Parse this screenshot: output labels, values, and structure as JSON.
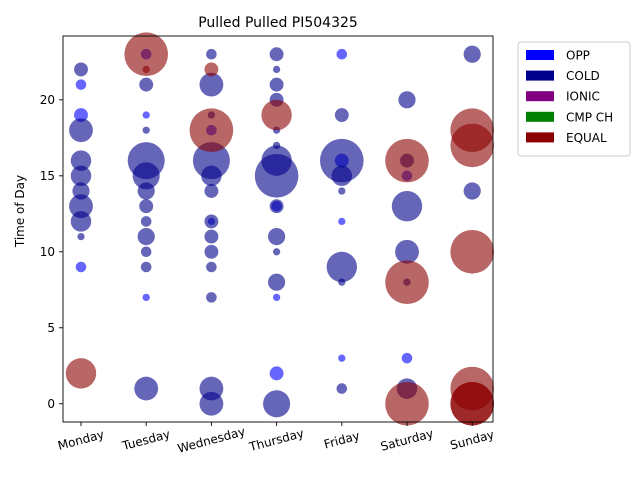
{
  "chart_data": {
    "type": "scatter",
    "title": "Pulled Pulled PI504325",
    "xlabel": "",
    "ylabel": "Time of Day",
    "categories": [
      "Monday",
      "Tuesday",
      "Wednesday",
      "Thursday",
      "Friday",
      "Saturday",
      "Sunday"
    ],
    "ylim": [
      -1.2,
      24.2
    ],
    "yticks": [
      0,
      5,
      10,
      15,
      20
    ],
    "grid": false,
    "legend_position": "outside-top-right",
    "legend": [
      {
        "name": "OPP",
        "color": "#0000ff"
      },
      {
        "name": "COLD",
        "color": "#00008b"
      },
      {
        "name": "IONIC",
        "color": "#800080"
      },
      {
        "name": "CMP CH",
        "color": "#008000"
      },
      {
        "name": "EQUAL",
        "color": "#8b0000"
      }
    ],
    "marker_alpha": 0.6,
    "series": [
      {
        "name": "OPP",
        "color": "#0000ff",
        "points": [
          {
            "x": "Monday",
            "y": 21,
            "size": 2
          },
          {
            "x": "Monday",
            "y": 19,
            "size": 3
          },
          {
            "x": "Monday",
            "y": 9,
            "size": 2
          },
          {
            "x": "Tuesday",
            "y": 23,
            "size": 2
          },
          {
            "x": "Tuesday",
            "y": 19,
            "size": 1
          },
          {
            "x": "Tuesday",
            "y": 7,
            "size": 1
          },
          {
            "x": "Wednesday",
            "y": 18,
            "size": 2
          },
          {
            "x": "Wednesday",
            "y": 12,
            "size": 1
          },
          {
            "x": "Thursday",
            "y": 13,
            "size": 2
          },
          {
            "x": "Thursday",
            "y": 7,
            "size": 1
          },
          {
            "x": "Thursday",
            "y": 2,
            "size": 3
          },
          {
            "x": "Friday",
            "y": 23,
            "size": 2
          },
          {
            "x": "Friday",
            "y": 16,
            "size": 3
          },
          {
            "x": "Friday",
            "y": 12,
            "size": 1
          },
          {
            "x": "Friday",
            "y": 3,
            "size": 1
          },
          {
            "x": "Saturday",
            "y": 15,
            "size": 2
          },
          {
            "x": "Saturday",
            "y": 3,
            "size": 2
          }
        ]
      },
      {
        "name": "COLD",
        "color": "#00008b",
        "points": [
          {
            "x": "Monday",
            "y": 22,
            "size": 3
          },
          {
            "x": "Monday",
            "y": 18,
            "size": 6
          },
          {
            "x": "Monday",
            "y": 16,
            "size": 5
          },
          {
            "x": "Monday",
            "y": 15,
            "size": 5
          },
          {
            "x": "Monday",
            "y": 14,
            "size": 4
          },
          {
            "x": "Monday",
            "y": 13,
            "size": 6
          },
          {
            "x": "Monday",
            "y": 12,
            "size": 5
          },
          {
            "x": "Monday",
            "y": 11,
            "size": 1
          },
          {
            "x": "Tuesday",
            "y": 21,
            "size": 3
          },
          {
            "x": "Tuesday",
            "y": 18,
            "size": 1
          },
          {
            "x": "Tuesday",
            "y": 16,
            "size": 10
          },
          {
            "x": "Tuesday",
            "y": 15,
            "size": 7
          },
          {
            "x": "Tuesday",
            "y": 14,
            "size": 4
          },
          {
            "x": "Tuesday",
            "y": 13,
            "size": 3
          },
          {
            "x": "Tuesday",
            "y": 12,
            "size": 2
          },
          {
            "x": "Tuesday",
            "y": 11,
            "size": 4
          },
          {
            "x": "Tuesday",
            "y": 10,
            "size": 2
          },
          {
            "x": "Tuesday",
            "y": 9,
            "size": 2
          },
          {
            "x": "Tuesday",
            "y": 1,
            "size": 6
          },
          {
            "x": "Wednesday",
            "y": 23,
            "size": 2
          },
          {
            "x": "Wednesday",
            "y": 21,
            "size": 6
          },
          {
            "x": "Wednesday",
            "y": 19,
            "size": 1
          },
          {
            "x": "Wednesday",
            "y": 16,
            "size": 10
          },
          {
            "x": "Wednesday",
            "y": 15,
            "size": 5
          },
          {
            "x": "Wednesday",
            "y": 14,
            "size": 3
          },
          {
            "x": "Wednesday",
            "y": 12,
            "size": 3
          },
          {
            "x": "Wednesday",
            "y": 11,
            "size": 3
          },
          {
            "x": "Wednesday",
            "y": 10,
            "size": 3
          },
          {
            "x": "Wednesday",
            "y": 9,
            "size": 2
          },
          {
            "x": "Wednesday",
            "y": 7,
            "size": 2
          },
          {
            "x": "Wednesday",
            "y": 1,
            "size": 6
          },
          {
            "x": "Wednesday",
            "y": 0,
            "size": 6
          },
          {
            "x": "Thursday",
            "y": 23,
            "size": 3
          },
          {
            "x": "Thursday",
            "y": 22,
            "size": 1
          },
          {
            "x": "Thursday",
            "y": 21,
            "size": 3
          },
          {
            "x": "Thursday",
            "y": 20,
            "size": 3
          },
          {
            "x": "Thursday",
            "y": 18,
            "size": 1
          },
          {
            "x": "Thursday",
            "y": 17,
            "size": 1
          },
          {
            "x": "Thursday",
            "y": 16,
            "size": 8
          },
          {
            "x": "Thursday",
            "y": 15,
            "size": 12
          },
          {
            "x": "Thursday",
            "y": 13,
            "size": 3
          },
          {
            "x": "Thursday",
            "y": 11,
            "size": 4
          },
          {
            "x": "Thursday",
            "y": 10,
            "size": 1
          },
          {
            "x": "Thursday",
            "y": 8,
            "size": 4
          },
          {
            "x": "Thursday",
            "y": 0,
            "size": 7
          },
          {
            "x": "Friday",
            "y": 19,
            "size": 3
          },
          {
            "x": "Friday",
            "y": 16,
            "size": 12
          },
          {
            "x": "Friday",
            "y": 15,
            "size": 5
          },
          {
            "x": "Friday",
            "y": 14,
            "size": 1
          },
          {
            "x": "Friday",
            "y": 9,
            "size": 8
          },
          {
            "x": "Friday",
            "y": 8,
            "size": 1
          },
          {
            "x": "Friday",
            "y": 1,
            "size": 2
          },
          {
            "x": "Saturday",
            "y": 20,
            "size": 4
          },
          {
            "x": "Saturday",
            "y": 16,
            "size": 3
          },
          {
            "x": "Saturday",
            "y": 13,
            "size": 8
          },
          {
            "x": "Saturday",
            "y": 10,
            "size": 6
          },
          {
            "x": "Saturday",
            "y": 8,
            "size": 1
          },
          {
            "x": "Saturday",
            "y": 1,
            "size": 5
          },
          {
            "x": "Sunday",
            "y": 23,
            "size": 4
          },
          {
            "x": "Sunday",
            "y": 14,
            "size": 4
          }
        ]
      },
      {
        "name": "IONIC",
        "color": "#800080",
        "points": []
      },
      {
        "name": "CMP CH",
        "color": "#008000",
        "points": []
      },
      {
        "name": "EQUAL",
        "color": "#8b0000",
        "points": [
          {
            "x": "Monday",
            "y": 2,
            "size": 8
          },
          {
            "x": "Tuesday",
            "y": 23,
            "size": 12
          },
          {
            "x": "Tuesday",
            "y": 22,
            "size": 1
          },
          {
            "x": "Wednesday",
            "y": 22,
            "size": 3
          },
          {
            "x": "Wednesday",
            "y": 18,
            "size": 12
          },
          {
            "x": "Thursday",
            "y": 19,
            "size": 8
          },
          {
            "x": "Saturday",
            "y": 16,
            "size": 12
          },
          {
            "x": "Saturday",
            "y": 8,
            "size": 12
          },
          {
            "x": "Saturday",
            "y": 0,
            "size": 12
          },
          {
            "x": "Sunday",
            "y": 18,
            "size": 12
          },
          {
            "x": "Sunday",
            "y": 17,
            "size": 12
          },
          {
            "x": "Sunday",
            "y": 10,
            "size": 12
          },
          {
            "x": "Sunday",
            "y": 1,
            "size": 12
          },
          {
            "x": "Sunday",
            "y": 0,
            "size": 12
          },
          {
            "x": "Sunday",
            "y": 0,
            "size": 12
          }
        ]
      }
    ]
  }
}
